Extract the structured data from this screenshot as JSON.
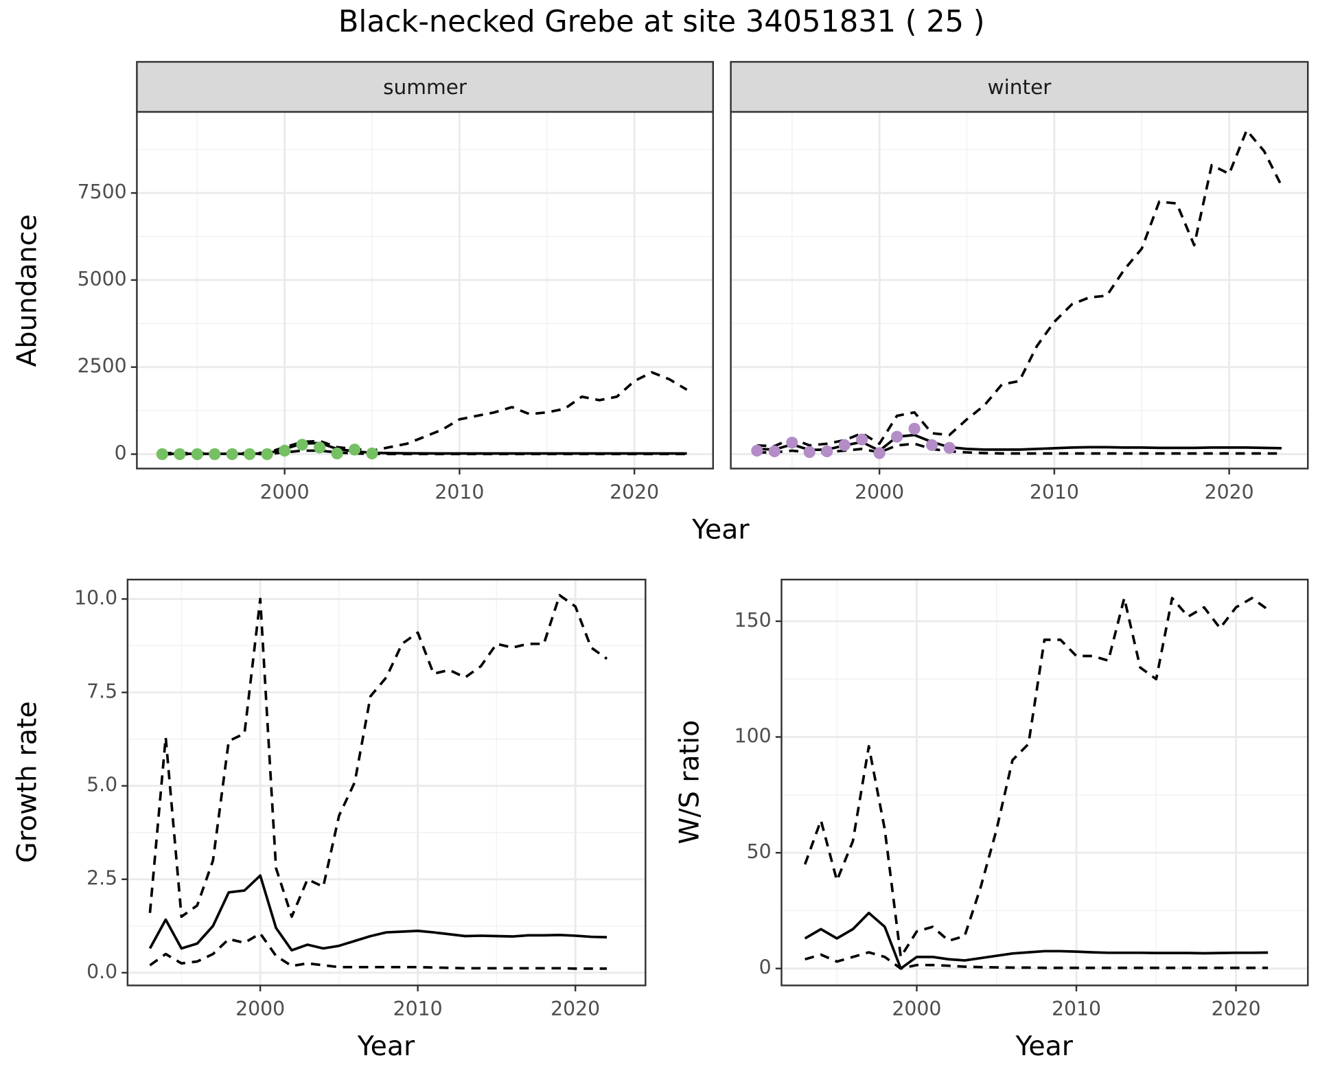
{
  "title": "Black-necked Grebe at site 34051831 ( 25 )",
  "chart_data": [
    {
      "type": "line",
      "strip": "summer",
      "xlabel": "Year",
      "ylabel": "Abundance",
      "xlim": [
        1991.55,
        2024.5
      ],
      "ylim": [
        -414,
        9830
      ],
      "xticks": [
        2000,
        2010,
        2020
      ],
      "yticks": [
        0,
        2500,
        5000,
        7500
      ],
      "ytick_labels": true,
      "grid": true,
      "x": [
        1993,
        1994,
        1995,
        1996,
        1997,
        1998,
        1999,
        2000,
        2001,
        2002,
        2003,
        2004,
        2005,
        2006,
        2007,
        2008,
        2009,
        2010,
        2011,
        2012,
        2013,
        2014,
        2015,
        2016,
        2017,
        2018,
        2019,
        2020,
        2021,
        2022,
        2023
      ],
      "series": [
        {
          "style": "dashed",
          "color": "#000000",
          "values": [
            30,
            30,
            30,
            30,
            30,
            30,
            40,
            200,
            350,
            380,
            200,
            150,
            100,
            200,
            300,
            500,
            700,
            1000,
            1100,
            1200,
            1350,
            1150,
            1200,
            1300,
            1650,
            1550,
            1650,
            2100,
            2350,
            2150,
            1850
          ]
        },
        {
          "style": "solid",
          "color": "#000000",
          "values": [
            10,
            10,
            10,
            10,
            10,
            10,
            20,
            150,
            300,
            320,
            150,
            80,
            40,
            30,
            25,
            22,
            20,
            20,
            20,
            20,
            20,
            20,
            20,
            20,
            20,
            20,
            20,
            20,
            20,
            20,
            20
          ]
        },
        {
          "style": "dashed",
          "color": "#000000",
          "values": [
            0,
            0,
            0,
            0,
            0,
            0,
            5,
            50,
            100,
            100,
            50,
            20,
            10,
            5,
            5,
            5,
            5,
            5,
            5,
            5,
            5,
            5,
            5,
            5,
            5,
            5,
            5,
            5,
            5,
            5,
            5
          ]
        },
        {
          "style": "points",
          "color": "#74c062",
          "x": [
            1993,
            1994,
            1995,
            1996,
            1997,
            1998,
            1999,
            2000,
            2001,
            2002,
            2003,
            2004,
            2005
          ],
          "values": [
            0,
            0,
            0,
            0,
            0,
            0,
            0,
            100,
            270,
            190,
            20,
            130,
            20
          ]
        }
      ]
    },
    {
      "type": "line",
      "strip": "winter",
      "xlim": [
        1991.5,
        2024.5
      ],
      "ylim": [
        -414,
        9830
      ],
      "xticks": [
        2000,
        2010,
        2020
      ],
      "yticks": [
        0,
        2500,
        5000,
        7500
      ],
      "ytick_labels": false,
      "grid": true,
      "x": [
        1993,
        1994,
        1995,
        1996,
        1997,
        1998,
        1999,
        2000,
        2001,
        2002,
        2003,
        2004,
        2005,
        2006,
        2007,
        2008,
        2009,
        2010,
        2011,
        2012,
        2013,
        2014,
        2015,
        2016,
        2017,
        2018,
        2019,
        2020,
        2021,
        2022,
        2023
      ],
      "series": [
        {
          "style": "dashed",
          "color": "#000000",
          "values": [
            250,
            230,
            450,
            250,
            300,
            400,
            600,
            300,
            1100,
            1200,
            600,
            550,
            1000,
            1400,
            2000,
            2100,
            3100,
            3800,
            4300,
            4500,
            4550,
            5300,
            5900,
            7250,
            7200,
            6000,
            8300,
            8050,
            9300,
            8700,
            7700
          ]
        },
        {
          "style": "solid",
          "color": "#000000",
          "values": [
            150,
            130,
            280,
            120,
            130,
            250,
            350,
            100,
            500,
            550,
            350,
            200,
            150,
            130,
            130,
            130,
            150,
            170,
            190,
            200,
            200,
            190,
            190,
            180,
            180,
            180,
            190,
            190,
            190,
            180,
            170
          ]
        },
        {
          "style": "dashed",
          "color": "#000000",
          "values": [
            50,
            50,
            100,
            50,
            60,
            100,
            150,
            50,
            250,
            300,
            150,
            80,
            50,
            30,
            20,
            20,
            20,
            20,
            20,
            20,
            20,
            20,
            20,
            20,
            20,
            20,
            20,
            20,
            20,
            20,
            20
          ]
        },
        {
          "style": "points",
          "color": "#b48dc7",
          "x": [
            1993,
            1994,
            1995,
            1996,
            1997,
            1998,
            1999,
            2000,
            2001,
            2002,
            2003,
            2004
          ],
          "values": [
            100,
            80,
            330,
            60,
            80,
            260,
            420,
            30,
            500,
            730,
            260,
            180
          ]
        }
      ]
    },
    {
      "type": "line",
      "xlabel": "Year",
      "ylabel": "Growth rate",
      "xlim": [
        1991.58,
        2024.45
      ],
      "ylim": [
        -0.34,
        10.52
      ],
      "xticks": [
        2000,
        2010,
        2020
      ],
      "yticks": [
        {
          "value": 0,
          "label": "0.0"
        },
        2.5,
        {
          "value": 5,
          "label": "5.0"
        },
        7.5,
        {
          "value": 10,
          "label": "10.0"
        }
      ],
      "ytick_labels": true,
      "grid": true,
      "x": [
        1993,
        1994,
        1995,
        1996,
        1997,
        1998,
        1999,
        2000,
        2001,
        2002,
        2003,
        2004,
        2005,
        2006,
        2007,
        2008,
        2009,
        2010,
        2011,
        2012,
        2013,
        2014,
        2015,
        2016,
        2017,
        2018,
        2019,
        2020,
        2021,
        2022
      ],
      "series": [
        {
          "style": "dashed",
          "color": "#000000",
          "values": [
            1.6,
            6.3,
            1.5,
            1.8,
            3.0,
            6.2,
            6.4,
            10.0,
            2.8,
            1.5,
            2.5,
            2.3,
            4.2,
            5.1,
            7.4,
            7.9,
            8.8,
            9.1,
            8.0,
            8.1,
            7.9,
            8.2,
            8.8,
            8.7,
            8.8,
            8.8,
            10.1,
            9.8,
            8.7,
            8.4
          ]
        },
        {
          "style": "solid",
          "color": "#000000",
          "values": [
            0.65,
            1.42,
            0.65,
            0.78,
            1.25,
            2.15,
            2.2,
            2.6,
            1.2,
            0.6,
            0.75,
            0.65,
            0.72,
            0.85,
            0.98,
            1.08,
            1.1,
            1.12,
            1.08,
            1.03,
            0.98,
            0.99,
            0.98,
            0.97,
            1.0,
            1.0,
            1.01,
            0.99,
            0.96,
            0.95
          ]
        },
        {
          "style": "dashed",
          "color": "#000000",
          "values": [
            0.2,
            0.5,
            0.25,
            0.3,
            0.5,
            0.9,
            0.8,
            1.05,
            0.45,
            0.18,
            0.25,
            0.2,
            0.15,
            0.15,
            0.15,
            0.15,
            0.15,
            0.15,
            0.14,
            0.13,
            0.12,
            0.12,
            0.12,
            0.12,
            0.12,
            0.12,
            0.12,
            0.11,
            0.11,
            0.11
          ]
        }
      ]
    },
    {
      "type": "line",
      "xlabel": "Year",
      "ylabel": "W/S ratio",
      "xlim": [
        1991.53,
        2024.5
      ],
      "ylim": [
        -7.3,
        168
      ],
      "xticks": [
        2000,
        2010,
        2020
      ],
      "yticks": [
        0,
        50,
        100,
        150
      ],
      "ytick_labels": true,
      "grid": true,
      "x": [
        1993,
        1994,
        1995,
        1996,
        1997,
        1998,
        1999,
        2000,
        2001,
        2002,
        2003,
        2004,
        2005,
        2006,
        2007,
        2008,
        2009,
        2010,
        2011,
        2012,
        2013,
        2014,
        2015,
        2016,
        2017,
        2018,
        2019,
        2020,
        2021,
        2022
      ],
      "series": [
        {
          "style": "dashed",
          "color": "#000000",
          "values": [
            45,
            64,
            38,
            55,
            96,
            60,
            5,
            16,
            18,
            12,
            14,
            35,
            60,
            90,
            97,
            142,
            142,
            135,
            135,
            133,
            160,
            130,
            125,
            160,
            152,
            156,
            147,
            156,
            160,
            155
          ]
        },
        {
          "style": "solid",
          "color": "#000000",
          "values": [
            13,
            17,
            13,
            17,
            24,
            18,
            0,
            5,
            5,
            4,
            3.5,
            4.5,
            5.5,
            6.5,
            7,
            7.5,
            7.5,
            7.3,
            7,
            6.8,
            6.8,
            6.8,
            6.7,
            6.7,
            6.7,
            6.6,
            6.7,
            6.8,
            6.8,
            6.9
          ]
        },
        {
          "style": "dashed",
          "color": "#000000",
          "values": [
            4,
            6,
            3,
            5,
            7,
            5,
            0,
            1.5,
            1.5,
            1.2,
            0.8,
            0.6,
            0.5,
            0.4,
            0.4,
            0.3,
            0.3,
            0.3,
            0.3,
            0.3,
            0.3,
            0.3,
            0.3,
            0.3,
            0.3,
            0.3,
            0.3,
            0.3,
            0.3,
            0.3
          ]
        }
      ]
    }
  ]
}
